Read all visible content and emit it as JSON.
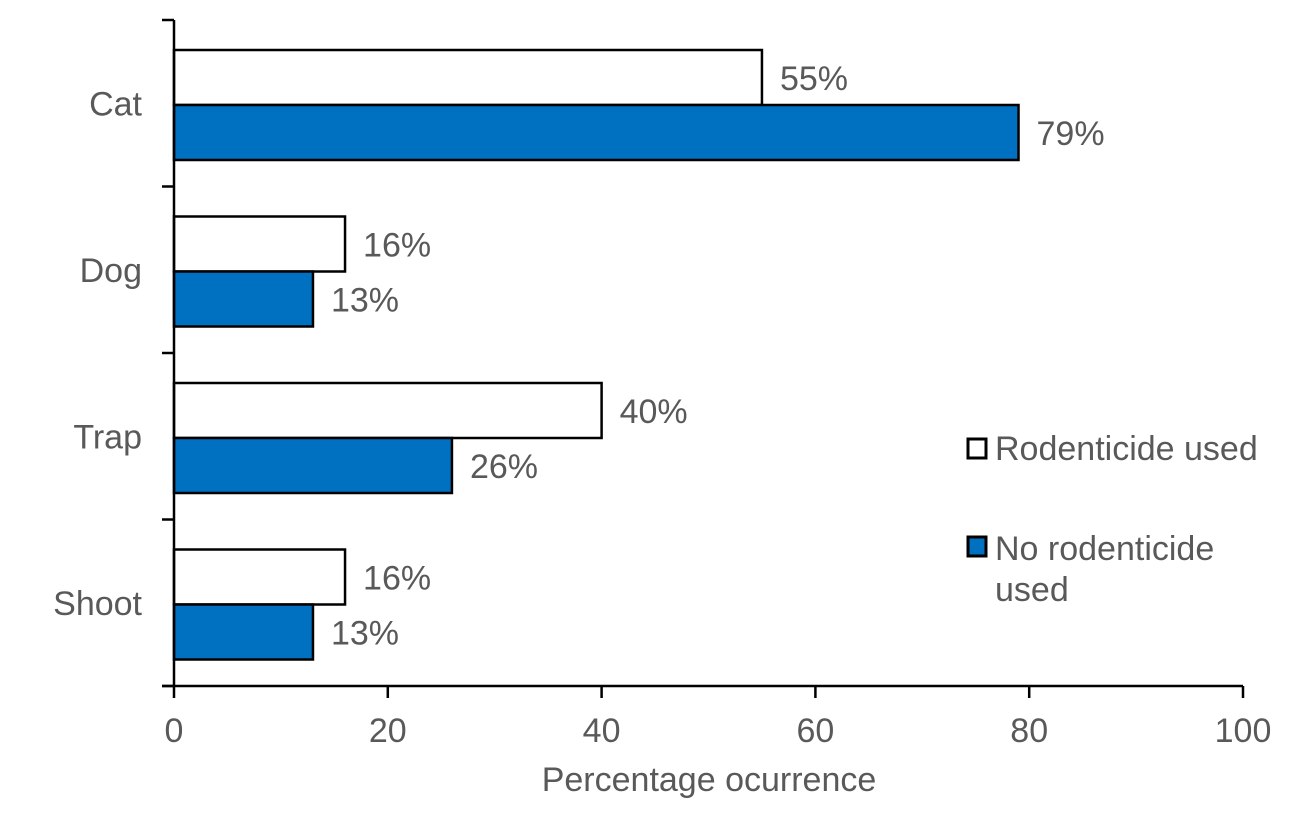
{
  "chart_data": {
    "type": "bar",
    "orientation": "horizontal",
    "title": "",
    "xlabel": "Percentage ocurrence",
    "ylabel": "",
    "xlim": [
      0,
      100
    ],
    "xticks": [
      0,
      20,
      40,
      60,
      80,
      100
    ],
    "categories": [
      "Cat",
      "Dog",
      "Trap",
      "Shoot"
    ],
    "series": [
      {
        "name": "Rodenticide used",
        "color": "#FFFFFF",
        "values": [
          55,
          16,
          40,
          16
        ],
        "labels": [
          "55%",
          "16%",
          "40%",
          "16%"
        ]
      },
      {
        "name": "No rodenticide used",
        "color": "#0070C0",
        "values": [
          79,
          13,
          26,
          13
        ],
        "labels": [
          "79%",
          "13%",
          "26%",
          "13%"
        ]
      }
    ],
    "legend": {
      "position": "right",
      "entries": [
        [
          "Rodenticide used"
        ],
        [
          "No rodenticide",
          "used"
        ]
      ]
    },
    "grid": false
  }
}
